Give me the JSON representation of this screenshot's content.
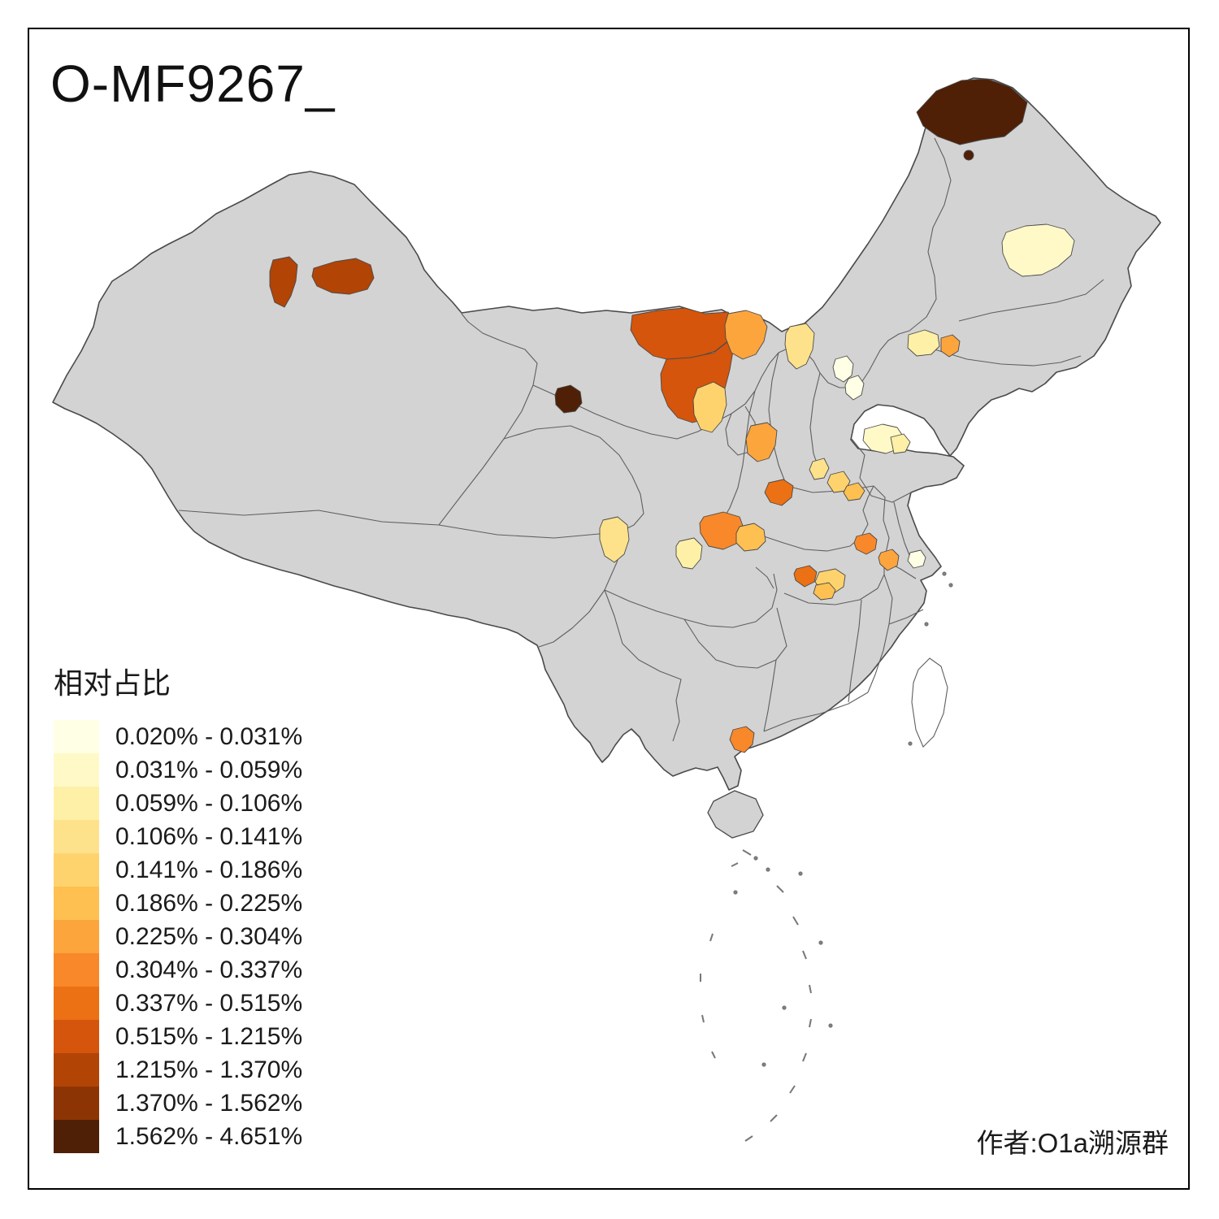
{
  "title": "O-MF9267_",
  "credit": "作者:O1a溯源群",
  "legend": {
    "title": "相对占比",
    "bins": [
      {
        "label": "0.020% - 0.031%",
        "color": "#FFFFE5"
      },
      {
        "label": "0.031% - 0.059%",
        "color": "#FFF9C7"
      },
      {
        "label": "0.059% - 0.106%",
        "color": "#FEF0A6"
      },
      {
        "label": "0.106% - 0.141%",
        "color": "#FEE28B"
      },
      {
        "label": "0.141% - 0.186%",
        "color": "#FED36E"
      },
      {
        "label": "0.186% - 0.225%",
        "color": "#FEC051"
      },
      {
        "label": "0.225% - 0.304%",
        "color": "#FDA53D"
      },
      {
        "label": "0.304% - 0.337%",
        "color": "#F8882A"
      },
      {
        "label": "0.337% - 0.515%",
        "color": "#EC7014"
      },
      {
        "label": "0.515% - 1.215%",
        "color": "#D4550B"
      },
      {
        "label": "1.215% - 1.370%",
        "color": "#B24406"
      },
      {
        "label": "1.370% - 1.562%",
        "color": "#8C3404"
      },
      {
        "label": "1.562% - 4.651%",
        "color": "#4F2006"
      }
    ]
  },
  "map": {
    "base_fill": "#D3D3D3",
    "border_color": "#4A4A4A",
    "background": "#FFFFFF"
  }
}
